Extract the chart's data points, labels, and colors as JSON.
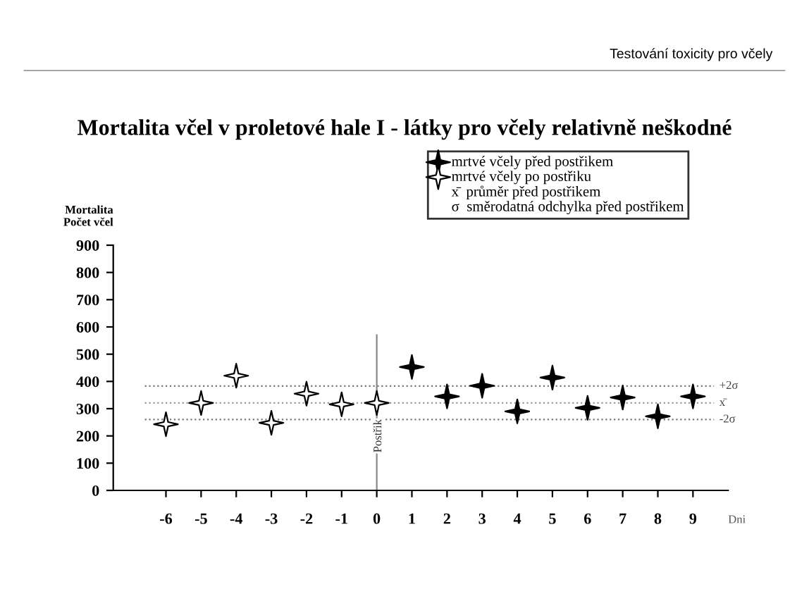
{
  "chart_data": {
    "type": "scatter",
    "title": "Mortalita včel v proletové hale I - látky pro včely relativně neškodné",
    "ylabel": "Mortalita\nPočet včel",
    "xlabel": "Dni",
    "annotations": [
      "Testování toxicity pro včely",
      "x̄  průměr před postřikem",
      "σ  směrodatná odchylka před postřikem"
    ],
    "series": [
      {
        "name": "mrtvé včely před postřikem",
        "color": "#000000",
        "x": [
          1,
          2,
          3,
          4,
          5,
          6,
          7,
          8,
          9
        ],
        "values": [
          453,
          345,
          384,
          290,
          414,
          303,
          341,
          272,
          345
        ]
      },
      {
        "name": "mrtvé včely po postřiku",
        "color": "#ffffff",
        "x": [
          -6,
          -5,
          -4,
          -3,
          -2,
          -1,
          0
        ],
        "values": [
          243,
          321,
          421,
          248,
          355,
          316,
          321
        ]
      }
    ],
    "ref_lines": [
      {
        "axis": "y",
        "value": 383,
        "label": "+2σ",
        "line_style": "dotted",
        "color": "#777777"
      },
      {
        "axis": "y",
        "value": 321,
        "label": "x̄",
        "line_style": "dotted",
        "color": "#999999"
      },
      {
        "axis": "y",
        "value": 260,
        "label": "-2σ",
        "line_style": "dotted",
        "color": "#777777"
      },
      {
        "axis": "x",
        "value": 0,
        "label": "Postřik",
        "line_style": "solid",
        "color": "#888888"
      }
    ],
    "xlim": [
      -7.5,
      10
    ],
    "xticks": [
      -6,
      -5,
      -4,
      -3,
      -2,
      -1,
      0,
      1,
      2,
      3,
      4,
      5,
      6,
      7,
      8,
      9
    ],
    "ylim": [
      0,
      900
    ],
    "yticks": [
      0,
      100,
      200,
      300,
      400,
      500,
      600,
      700,
      800,
      900
    ],
    "marker": "star",
    "grid": false,
    "legend": "top right"
  }
}
